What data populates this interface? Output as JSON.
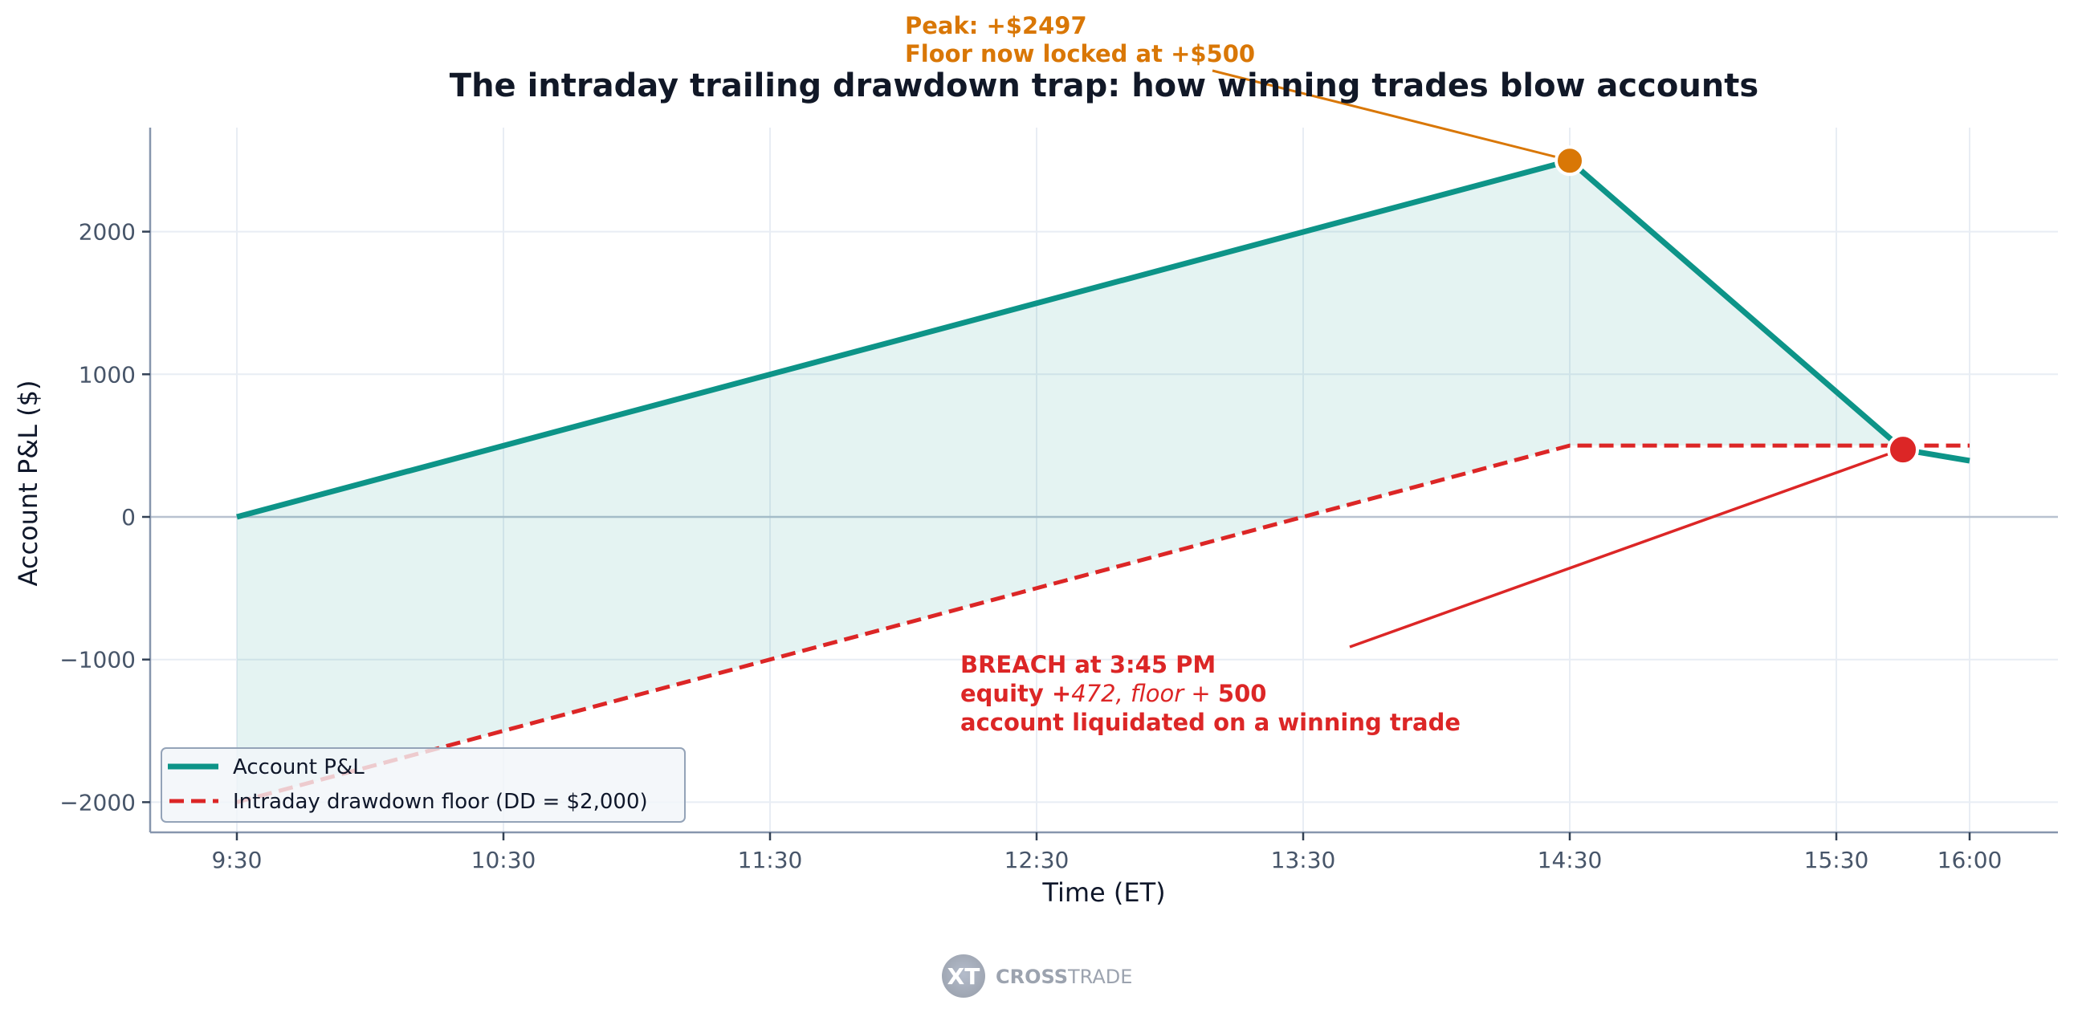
{
  "chart_data": {
    "type": "line",
    "title": "The intraday trailing drawdown trap: how winning trades blow accounts",
    "xlabel": "Time (ET)",
    "ylabel": "Account P&L ($)",
    "x_ticks": [
      "9:30",
      "10:30",
      "11:30",
      "12:30",
      "13:30",
      "14:30",
      "15:30",
      "16:00"
    ],
    "x_tick_minutes": [
      0,
      60,
      120,
      180,
      240,
      300,
      360,
      390
    ],
    "y_ticks": [
      -2000,
      -1000,
      0,
      1000,
      2000
    ],
    "y_tick_labels": [
      "−2000",
      "−1000",
      "0",
      "1000",
      "2000"
    ],
    "ylim": [
      -2210,
      2730
    ],
    "xlim_minutes": [
      -12,
      400
    ],
    "grid": true,
    "legend_position": "lower left",
    "series": [
      {
        "name": "Account P&L",
        "style": "solid",
        "color": "#0d9488",
        "x": [
          "9:30",
          "14:30",
          "15:45",
          "16:00"
        ],
        "x_minutes": [
          0,
          300,
          375,
          390
        ],
        "values": [
          0,
          2497,
          472,
          394
        ]
      },
      {
        "name": "Intraday drawdown floor (DD = $2,000)",
        "style": "dashed",
        "color": "#dc2626",
        "x": [
          "9:30",
          "14:30",
          "16:00"
        ],
        "x_minutes": [
          0,
          300,
          390
        ],
        "values": [
          -2000,
          500,
          500
        ]
      }
    ],
    "fill_between": {
      "from": "Intraday drawdown floor (DD = $2,000)",
      "to": "Account P&L",
      "x_range_minutes": [
        0,
        375
      ],
      "color": "#0d9488",
      "opacity": 0.11
    },
    "markers": [
      {
        "name": "peak",
        "x_minutes": 300,
        "value": 2497,
        "color": "#d97706"
      },
      {
        "name": "breach",
        "x_minutes": 375,
        "value": 472,
        "color": "#dc2626"
      }
    ],
    "annotations": [
      {
        "name": "peak-annotation",
        "color": "#d97706",
        "lines": [
          "Peak: +$2497",
          "Floor now locked at +$500"
        ],
        "points_to_minutes": 300,
        "points_to_value": 2497
      },
      {
        "name": "breach-annotation",
        "color": "#dc2626",
        "lines": [
          "BREACH at 3:45 PM",
          "equity +472, floor + 500",
          "account liquidated on a winning trade"
        ],
        "points_to_minutes": 375,
        "points_to_value": 472
      }
    ]
  },
  "header": {
    "title": "The intraday trailing drawdown trap: how winning trades blow accounts"
  },
  "axes": {
    "xlabel": "Time (ET)",
    "ylabel": "Account P&L ($)"
  },
  "legend": {
    "items": [
      {
        "label": "Account P&L",
        "color": "#0d9488",
        "style": "solid"
      },
      {
        "label": "Intraday drawdown floor (DD = $2,000)",
        "color": "#dc2626",
        "style": "dashed"
      }
    ]
  },
  "annotations": {
    "peak": {
      "line1": "Peak: +$2497",
      "line2": "Floor now locked at +$500"
    },
    "breach": {
      "line1": "BREACH at 3:45 PM",
      "line2_a": "equity +",
      "line2_b": "472, ",
      "line2_c": "floor",
      "line2_d": " + ",
      "line2_e": "500",
      "line3": "account liquidated on a winning trade"
    }
  },
  "watermark": {
    "logo_mark": "XT",
    "brand_bold": "CROSS",
    "brand_light": "TRADE"
  }
}
